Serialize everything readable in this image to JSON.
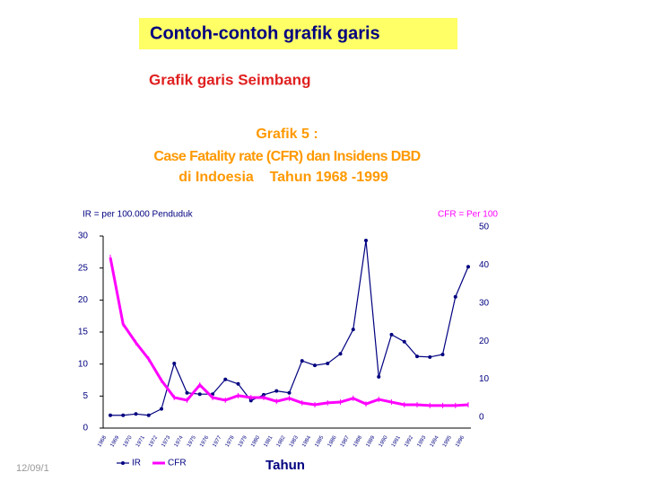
{
  "slide_title": "Contoh-contoh grafik garis",
  "slide_subtitle": "Grafik garis Seimbang",
  "footer_date": "12/09/1",
  "chart_data": {
    "type": "line",
    "title": [
      "Grafik 5 :",
      "Case Fatality rate (CFR) dan Insidens DBD",
      "di Indoesia    Tahun 1968 -1999"
    ],
    "y_label": "IR = per 100.000 Penduduk",
    "y2_label": "CFR = Per 100",
    "x_label": "Tahun",
    "categories": [
      "1968",
      "1969",
      "1970",
      "1971",
      "1972",
      "1973",
      "1974",
      "1975",
      "1976",
      "1977",
      "1978",
      "1979",
      "1980",
      "1981",
      "1982",
      "1983",
      "1984",
      "1985",
      "1986",
      "1987",
      "1988",
      "1989",
      "1990",
      "1991",
      "1992",
      "1993",
      "1994",
      "1995",
      "1996"
    ],
    "series": [
      {
        "name": "IR",
        "color": "#000080",
        "axis": "y",
        "values": [
          2.0,
          2.0,
          2.2,
          2.0,
          3.0,
          10.1,
          5.5,
          5.3,
          5.3,
          7.6,
          6.9,
          4.3,
          5.2,
          5.8,
          5.5,
          10.5,
          9.8,
          10.1,
          11.6,
          15.4,
          29.3,
          8.0,
          14.6,
          13.5,
          11.2,
          11.1,
          11.5,
          20.5,
          25.2
        ]
      },
      {
        "name": "CFR",
        "color": "#ff00ff",
        "axis": "y2",
        "values": [
          42,
          24.5,
          19.6,
          15.3,
          9.7,
          5.2,
          4.5,
          8.5,
          5.2,
          4.5,
          5.7,
          5.2,
          5.2,
          4.2,
          5.0,
          3.8,
          3.3,
          3.8,
          4.0,
          5.0,
          3.5,
          4.7,
          4.0,
          3.3,
          3.3,
          3.1,
          3.1,
          3.1,
          3.3
        ]
      }
    ],
    "ylim": [
      0,
      30
    ],
    "yticks": [
      0,
      5,
      10,
      15,
      20,
      25,
      30
    ],
    "y2lim": [
      0,
      50
    ],
    "y2ticks": [
      0,
      10,
      20,
      30,
      40,
      50
    ],
    "legend": "bottom"
  }
}
